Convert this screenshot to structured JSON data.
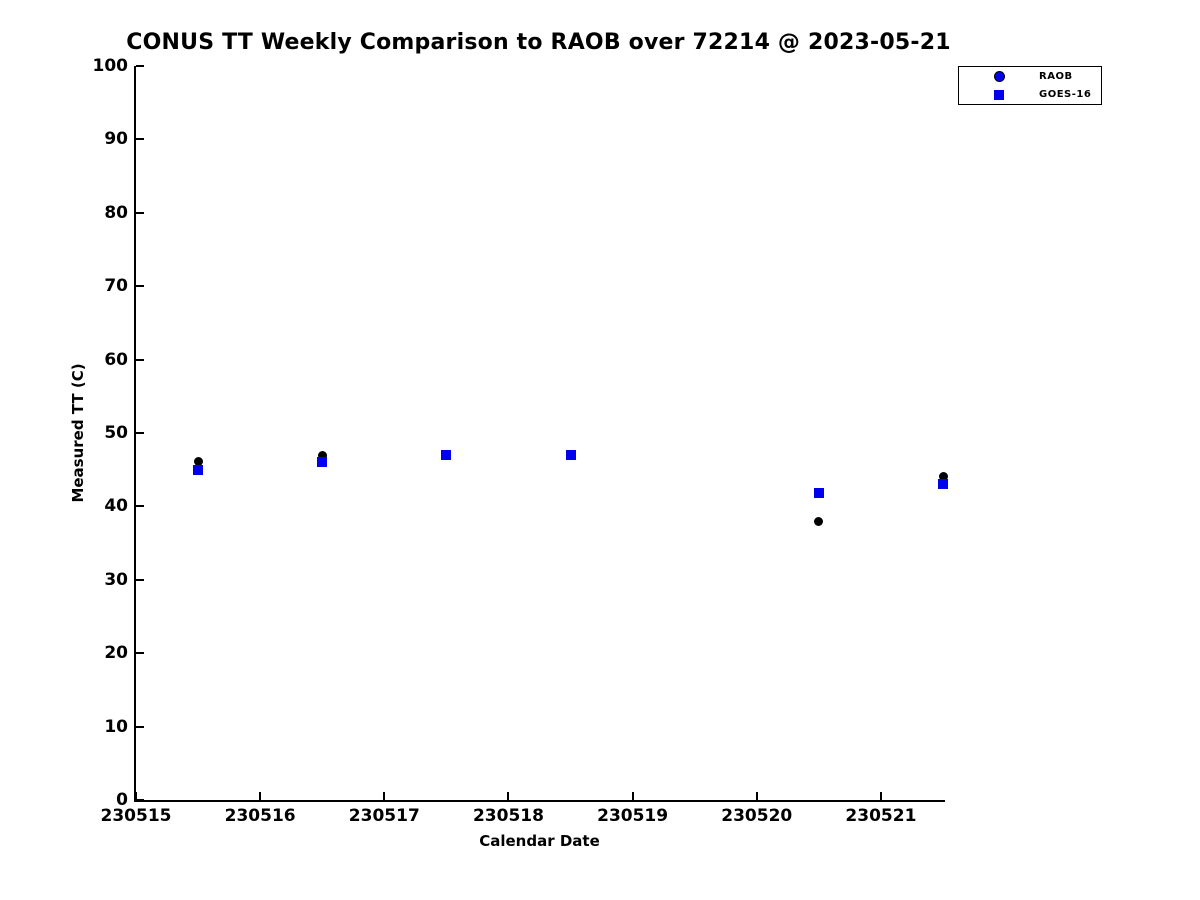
{
  "title": "CONUS TT Weekly Comparison to RAOB over 72214 @ 2023-05-21",
  "x_axis": {
    "label": "Calendar Date",
    "ticks": [
      "230515",
      "230516",
      "230517",
      "230518",
      "230519",
      "230520",
      "230521"
    ]
  },
  "y_axis": {
    "label": "Measured TT (C)",
    "ticks": [
      "0",
      "10",
      "20",
      "30",
      "40",
      "50",
      "60",
      "70",
      "80",
      "90",
      "100"
    ]
  },
  "legend": {
    "position": "upper-right",
    "items": [
      {
        "label": "RAOB",
        "marker": "circle",
        "fill": "#0000EE",
        "edge": "#000000"
      },
      {
        "label": "GOES-16",
        "marker": "square",
        "fill": "#0000EE"
      }
    ]
  },
  "colors": {
    "marker_blue": "#0000EE",
    "marker_black": "#000000",
    "axis": "#000000",
    "background": "#FFFFFF"
  },
  "chart_data": {
    "type": "scatter",
    "title": "CONUS TT Weekly Comparison to RAOB over 72214 @ 2023-05-21",
    "xlabel": "Calendar Date",
    "ylabel": "Measured TT (C)",
    "xlim": [
      230515,
      230521.5
    ],
    "ylim": [
      0,
      100
    ],
    "grid": false,
    "legend_position": "upper right",
    "x": [
      230515.5,
      230516.5,
      230517.5,
      230518.5,
      230520.5,
      230521.5
    ],
    "series": [
      {
        "name": "RAOB",
        "marker": "circle",
        "color": "#000000",
        "values": [
          46.1,
          46.9,
          47.0,
          47.0,
          38.0,
          44.1
        ]
      },
      {
        "name": "GOES-16",
        "marker": "square",
        "color": "#0000EE",
        "values": [
          44.9,
          46.0,
          47.0,
          47.0,
          41.8,
          43.1
        ]
      }
    ]
  }
}
